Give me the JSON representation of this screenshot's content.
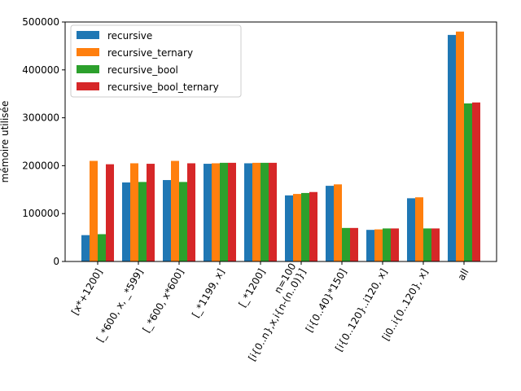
{
  "chart_data": {
    "type": "bar",
    "title": "",
    "xlabel": "",
    "ylabel": "mémoire utilisée",
    "ylim": [
      0,
      500000
    ],
    "yticks": [
      0,
      100000,
      200000,
      300000,
      400000,
      500000
    ],
    "ytick_labels": [
      "0",
      "100000",
      "200000",
      "300000",
      "400000",
      "500000"
    ],
    "grid": false,
    "legend_position": "top-left",
    "categories": [
      "[x*+1200]",
      "[_*600, x, _*599]",
      "[_*600, x*600]",
      "[_*1199, x]",
      "[_*1200]",
      "n=100\n[i{0..n},x,i{n-(n..0)}]",
      "[i{0..40}*150]",
      "[i{0..120}..i120, x]",
      "[i0..i{0..120}, x]",
      "all"
    ],
    "series": [
      {
        "name": "recursive",
        "color": "#1f77b4",
        "values": [
          55000,
          165000,
          170000,
          204000,
          205000,
          138000,
          158000,
          66000,
          132000,
          473000
        ]
      },
      {
        "name": "recursive_ternary",
        "color": "#ff7f0e",
        "values": [
          210000,
          205000,
          210000,
          205000,
          206000,
          141000,
          161000,
          67000,
          134000,
          480000
        ]
      },
      {
        "name": "recursive_bool",
        "color": "#2ca02c",
        "values": [
          57000,
          166000,
          166000,
          206000,
          206000,
          143000,
          70000,
          69000,
          69000,
          330000
        ]
      },
      {
        "name": "recursive_bool_ternary",
        "color": "#d62728",
        "values": [
          203000,
          204000,
          205000,
          206000,
          206000,
          145000,
          70000,
          69000,
          69000,
          332000
        ]
      }
    ]
  }
}
